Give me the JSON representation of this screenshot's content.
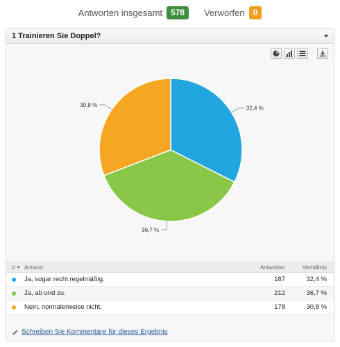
{
  "summary": {
    "total_label": "Antworten insgesamt",
    "total_value": "578",
    "rejected_label": "Verworfen",
    "rejected_value": "0",
    "total_color": "#3f8f3f",
    "rejected_color": "#f0a020"
  },
  "question": {
    "title": "1 Trainieren Sie Doppel?"
  },
  "toolbar": {
    "icons": [
      "pie-chart-icon",
      "bar-chart-icon",
      "table-icon",
      "download-icon"
    ]
  },
  "chart_data": {
    "type": "pie",
    "slices": [
      {
        "label": "Ja, sogar recht regelmäßig.",
        "value": 32.4,
        "count": 187,
        "percent_label": "32,4 %",
        "color": "#21a6e0"
      },
      {
        "label": "Ja, ab und zu.",
        "value": 36.7,
        "count": 212,
        "percent_label": "36,7 %",
        "color": "#8ac648"
      },
      {
        "label": "Nein, normalerweise nicht.",
        "value": 30.8,
        "count": 178,
        "percent_label": "30,8 %",
        "color": "#f5a623"
      }
    ],
    "start_angle_deg": 0,
    "direction": "clockwise"
  },
  "table": {
    "headers": {
      "num": "#",
      "answer": "Antwort",
      "count": "Antworten",
      "ratio": "Verhältnis"
    },
    "rows": [
      {
        "answer": "Ja, sogar recht regelmäßig.",
        "count": "187",
        "ratio": "32,4 %",
        "color": "#21a6e0"
      },
      {
        "answer": "Ja, ab und zu.",
        "count": "212",
        "ratio": "36,7 %",
        "color": "#8ac648"
      },
      {
        "answer": "Nein, normalerweise nicht.",
        "count": "178",
        "ratio": "30,8 %",
        "color": "#f5a623"
      }
    ]
  },
  "comment": {
    "link_text": "Schreiben Sie Kommentare für dieses Ergebnis"
  }
}
